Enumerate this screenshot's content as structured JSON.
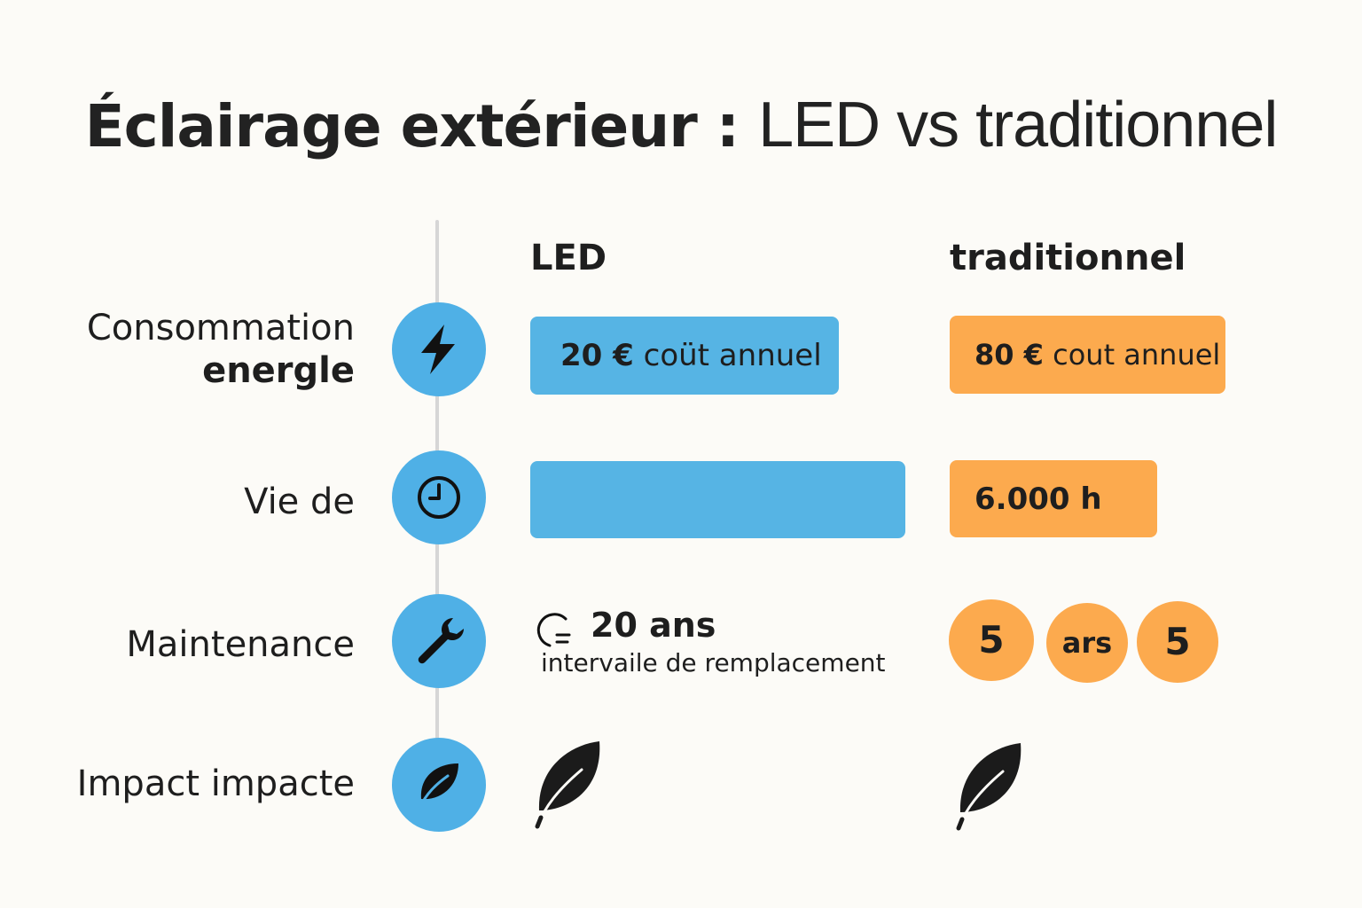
{
  "title": {
    "part1": "Éclairage extérieur",
    "sep": " : ",
    "part2": "LED vs traditionnel"
  },
  "columns": {
    "led": "LED",
    "traditional": "traditionnel"
  },
  "rows": [
    {
      "label_line1": "Consommation",
      "label_line2": "energle",
      "icon": "lightning-bolt-icon",
      "led": {
        "amount": "20 €",
        "text": "coüt annuel"
      },
      "traditional": {
        "amount": "80 €",
        "text": "cout annuel"
      }
    },
    {
      "label": "Vie de",
      "icon": "clock-icon",
      "led": {
        "text": ""
      },
      "traditional": {
        "text": "6.000 h"
      }
    },
    {
      "label": "Maintenance",
      "icon": "wrench-icon",
      "led": {
        "value": "20 ans",
        "caption": "intervaile de remplacement",
        "icon": "replacement-cycle-icon"
      },
      "traditional": {
        "bubbles": [
          "5",
          "ars",
          "5"
        ]
      }
    },
    {
      "label": "Impact impacte",
      "icon": "leaf-icon",
      "led": {
        "icon": "leaf-icon"
      },
      "traditional": {
        "icon": "leaf-icon"
      }
    }
  ],
  "colors": {
    "led": "#56b4e4",
    "traditional": "#fcaa4e",
    "icon_circle": "#4fb0e6",
    "background": "#fcfbf7"
  }
}
